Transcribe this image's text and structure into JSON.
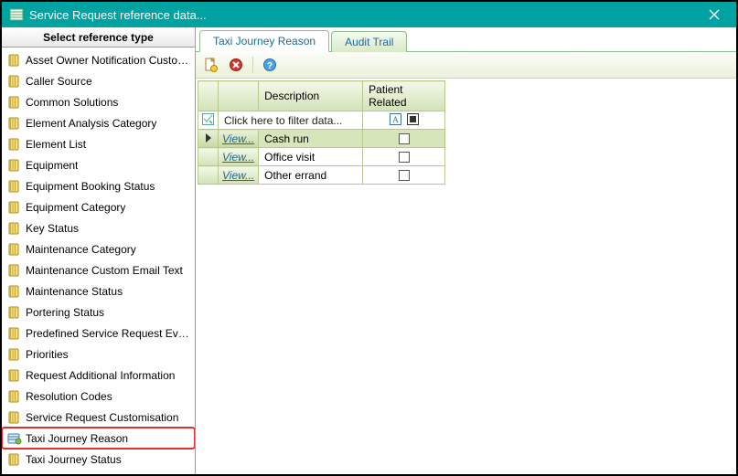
{
  "window": {
    "title": "Service Request reference data..."
  },
  "sidebar": {
    "header": "Select reference type",
    "items": [
      {
        "label": "Asset Owner Notification Custom...",
        "selected": false
      },
      {
        "label": "Caller Source",
        "selected": false
      },
      {
        "label": "Common Solutions",
        "selected": false
      },
      {
        "label": "Element Analysis Category",
        "selected": false
      },
      {
        "label": "Element List",
        "selected": false
      },
      {
        "label": "Equipment",
        "selected": false
      },
      {
        "label": "Equipment Booking Status",
        "selected": false
      },
      {
        "label": "Equipment Category",
        "selected": false
      },
      {
        "label": "Key Status",
        "selected": false
      },
      {
        "label": "Maintenance Category",
        "selected": false
      },
      {
        "label": "Maintenance Custom Email Text",
        "selected": false
      },
      {
        "label": "Maintenance Status",
        "selected": false
      },
      {
        "label": "Portering Status",
        "selected": false
      },
      {
        "label": "Predefined Service Request Events",
        "selected": false
      },
      {
        "label": "Priorities",
        "selected": false
      },
      {
        "label": "Request Additional Information",
        "selected": false
      },
      {
        "label": "Resolution Codes",
        "selected": false
      },
      {
        "label": "Service Request Customisation",
        "selected": false
      },
      {
        "label": "Taxi Journey Reason",
        "selected": true
      },
      {
        "label": "Taxi Journey Status",
        "selected": false
      }
    ]
  },
  "tabs": [
    {
      "label": "Taxi Journey Reason",
      "active": true
    },
    {
      "label": "Audit Trail",
      "active": false
    }
  ],
  "grid": {
    "columns": {
      "description": "Description",
      "patient_related": "Patient Related"
    },
    "filter_placeholder": "Click here to filter data...",
    "view_label": "View...",
    "rows": [
      {
        "description": "Cash run",
        "patient_related": false,
        "current": true
      },
      {
        "description": "Office visit",
        "patient_related": false,
        "current": false
      },
      {
        "description": "Other errand",
        "patient_related": false,
        "current": false
      }
    ]
  },
  "colors": {
    "titlebar": "#00a2a2",
    "highlight_border": "#e03030",
    "grid_border": "#b5c98f",
    "tab_text": "#1a6b99"
  }
}
